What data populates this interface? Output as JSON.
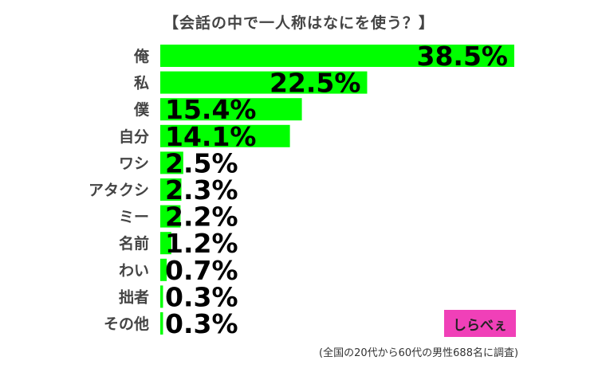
{
  "chart_data": {
    "type": "bar",
    "orientation": "horizontal",
    "title": "【会話の中で一人称はなにを使う？】",
    "categories": [
      "俺",
      "私",
      "僕",
      "自分",
      "ワシ",
      "アタクシ",
      "ミー",
      "名前",
      "わい",
      "拙者",
      "その他"
    ],
    "values": [
      38.5,
      22.5,
      15.4,
      14.1,
      2.5,
      2.3,
      2.2,
      1.2,
      0.7,
      0.3,
      0.3
    ],
    "value_labels": [
      "38.5%",
      "22.5%",
      "15.4%",
      "14.1%",
      "2.5%",
      "2.3%",
      "2.2%",
      "1.2%",
      "0.7%",
      "0.3%",
      "0.3%"
    ],
    "xlim": [
      0,
      40
    ],
    "bar_color": "#00ff00",
    "grid": false
  },
  "footnote": "(全国の20代から60代の男性688名に調査)",
  "logo": "しらべぇ"
}
